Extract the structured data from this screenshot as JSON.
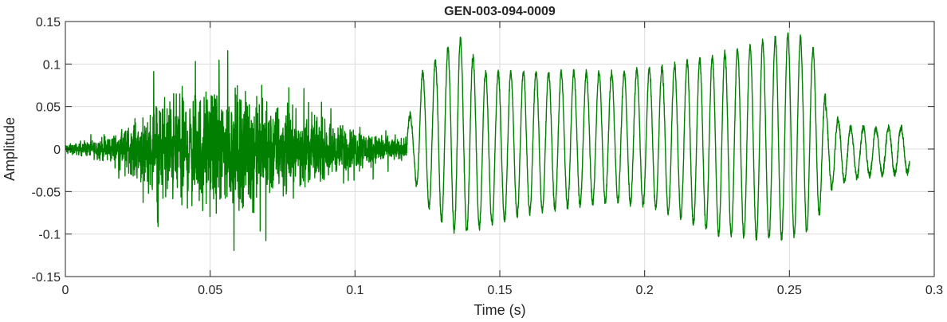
{
  "chart_data": {
    "type": "line",
    "title": "GEN-003-094-0009",
    "xlabel": "Time (s)",
    "ylabel": "Amplitude",
    "xlim": [
      0,
      0.3
    ],
    "ylim": [
      -0.15,
      0.15
    ],
    "xticks": [
      0,
      0.05,
      0.1,
      0.15,
      0.2,
      0.25,
      0.3
    ],
    "xtick_labels": [
      "0",
      "0.05",
      "0.1",
      "0.15",
      "0.2",
      "0.25",
      "0.3"
    ],
    "yticks": [
      -0.15,
      -0.1,
      -0.05,
      0,
      0.05,
      0.1,
      0.15
    ],
    "ytick_labels": [
      "-0.15",
      "-0.1",
      "-0.05",
      "0",
      "0.05",
      "0.1",
      "0.15"
    ],
    "grid": true,
    "line_color": "#007f00",
    "signal_end_s": 0.2915,
    "segments": [
      {
        "kind": "noise",
        "start": 0.0,
        "end": 0.007,
        "envelope": [
          0.01,
          0.015
        ]
      },
      {
        "kind": "noise",
        "start": 0.007,
        "end": 0.02,
        "envelope": [
          0.015,
          0.04
        ]
      },
      {
        "kind": "noise",
        "start": 0.02,
        "end": 0.035,
        "envelope": [
          0.04,
          0.12
        ]
      },
      {
        "kind": "noise",
        "start": 0.035,
        "end": 0.06,
        "envelope": [
          0.12,
          0.13
        ]
      },
      {
        "kind": "noise",
        "start": 0.06,
        "end": 0.09,
        "envelope": [
          0.13,
          0.06
        ]
      },
      {
        "kind": "noise",
        "start": 0.09,
        "end": 0.118,
        "envelope": [
          0.06,
          0.02
        ]
      },
      {
        "kind": "oscillation",
        "start": 0.118,
        "end": 0.2625,
        "cycles_per_s": 230,
        "peaks": [
          {
            "t": 0.12,
            "max": 0.04,
            "min": -0.03
          },
          {
            "t": 0.122,
            "max": 0.085,
            "min": -0.05
          },
          {
            "t": 0.128,
            "max": 0.105,
            "min": -0.08
          },
          {
            "t": 0.136,
            "max": 0.13,
            "min": -0.1
          },
          {
            "t": 0.145,
            "max": 0.09,
            "min": -0.09
          },
          {
            "t": 0.16,
            "max": 0.09,
            "min": -0.075
          },
          {
            "t": 0.19,
            "max": 0.09,
            "min": -0.06
          },
          {
            "t": 0.205,
            "max": 0.095,
            "min": -0.07
          },
          {
            "t": 0.225,
            "max": 0.11,
            "min": -0.1
          },
          {
            "t": 0.24,
            "max": 0.125,
            "min": -0.105
          },
          {
            "t": 0.248,
            "max": 0.135,
            "min": -0.105
          },
          {
            "t": 0.255,
            "max": 0.13,
            "min": -0.1
          },
          {
            "t": 0.26,
            "max": 0.11,
            "min": -0.08
          },
          {
            "t": 0.2625,
            "max": 0.06,
            "min": -0.05
          }
        ]
      },
      {
        "kind": "oscillation",
        "start": 0.2625,
        "end": 0.2915,
        "cycles_per_s": 230,
        "peaks": [
          {
            "t": 0.2625,
            "max": 0.05,
            "min": -0.05
          },
          {
            "t": 0.27,
            "max": 0.025,
            "min": -0.035
          },
          {
            "t": 0.28,
            "max": 0.025,
            "min": -0.03
          },
          {
            "t": 0.2915,
            "max": 0.025,
            "min": -0.028
          }
        ]
      }
    ]
  }
}
